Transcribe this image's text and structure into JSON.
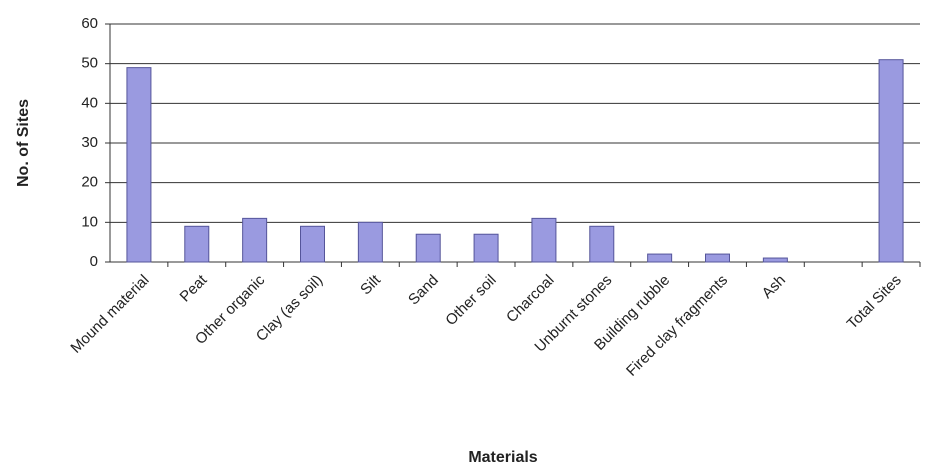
{
  "chart_data": {
    "type": "bar",
    "x_label": "Materials",
    "y_label": "No. of Sites",
    "categories": [
      "Mound material",
      "Peat",
      "Other organic",
      "Clay (as soil)",
      "Silt",
      "Sand",
      "Other soil",
      "Charcoal",
      "Unburnt stones",
      "Building rubble",
      "Fired clay fragments",
      "Ash",
      null,
      "Total Sites"
    ],
    "values": [
      49,
      9,
      11,
      9,
      10,
      7,
      7,
      11,
      9,
      2,
      2,
      1,
      0,
      51
    ],
    "color": "#9a9ae0",
    "ylim": [
      0,
      60
    ],
    "yticks": [
      0,
      10,
      20,
      30,
      40,
      50,
      60
    ],
    "grid": true
  }
}
